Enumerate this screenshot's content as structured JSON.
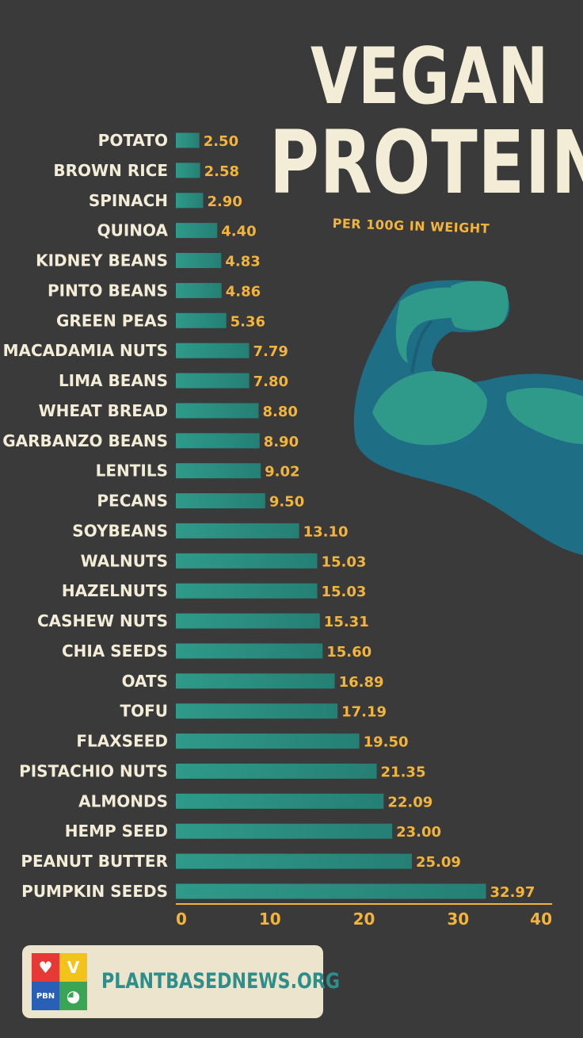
{
  "header": {
    "title_line1": "VEGAN",
    "title_line2": "PROTEIN",
    "subtitle": "PER 100G IN WEIGHT"
  },
  "footer": {
    "site": "PLANTBASEDNEWS.ORG",
    "logo_text": "PBN",
    "logo_heart": "♥",
    "logo_v": "V",
    "logo_globe": "◕"
  },
  "colors": {
    "background": "#3a3a3b",
    "bar": "#2f9a8a",
    "title": "#f3ecd6",
    "accent": "#f2b43a",
    "arm_dark": "#1e6f86",
    "arm_light": "#2f9a8a"
  },
  "icons": {
    "arm": "flexed-bicep-icon"
  },
  "chart_data": {
    "type": "bar",
    "orientation": "horizontal",
    "categories": [
      "POTATO",
      "BROWN RICE",
      "SPINACH",
      "QUINOA",
      "KIDNEY BEANS",
      "PINTO BEANS",
      "GREEN PEAS",
      "MACADAMIA NUTS",
      "LIMA BEANS",
      "WHEAT BREAD",
      "GARBANZO BEANS",
      "LENTILS",
      "PECANS",
      "SOYBEANS",
      "WALNUTS",
      "HAZELNUTS",
      "CASHEW NUTS",
      "CHIA SEEDS",
      "OATS",
      "TOFU",
      "FLAXSEED",
      "PISTACHIO NUTS",
      "ALMONDS",
      "HEMP SEED",
      "PEANUT BUTTER",
      "PUMPKIN SEEDS"
    ],
    "values": [
      2.5,
      2.58,
      2.9,
      4.4,
      4.83,
      4.86,
      5.36,
      7.79,
      7.8,
      8.8,
      8.9,
      9.02,
      9.5,
      13.1,
      15.03,
      15.03,
      15.31,
      15.6,
      16.89,
      17.19,
      19.5,
      21.35,
      22.09,
      23.0,
      25.09,
      32.97
    ],
    "value_labels": [
      "2.50",
      "2.58",
      "2.90",
      "4.40",
      "4.83",
      "4.86",
      "5.36",
      "7.79",
      "7.80",
      "8.80",
      "8.90",
      "9.02",
      "9.50",
      "13.10",
      "15.03",
      "15.03",
      "15.31",
      "15.60",
      "16.89",
      "17.19",
      "19.50",
      "21.35",
      "22.09",
      "23.00",
      "25.09",
      "32.97"
    ],
    "xlim": [
      0,
      40
    ],
    "x_ticks": [
      "0",
      "10",
      "20",
      "30",
      "40"
    ],
    "title": "VEGAN PROTEIN",
    "subtitle": "PER 100G IN WEIGHT",
    "xlabel": "",
    "ylabel": "",
    "grid": false,
    "legend": "none"
  }
}
